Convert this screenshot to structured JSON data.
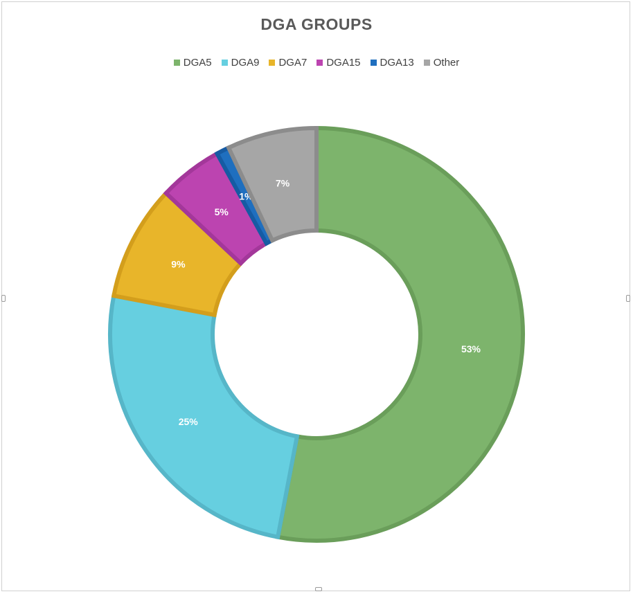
{
  "chart_data": {
    "type": "pie",
    "variant": "donut",
    "title": "DGA GROUPS",
    "legend_position": "top",
    "categories": [
      "DGA5",
      "DGA9",
      "DGA7",
      "DGA15",
      "DGA13",
      "Other"
    ],
    "values": [
      53,
      25,
      9,
      5,
      1,
      7
    ],
    "labels": [
      "53%",
      "25%",
      "9%",
      "5%",
      "1%",
      "7%"
    ],
    "colors": [
      "#7DB46C",
      "#66CFE0",
      "#E8B52A",
      "#BC44B0",
      "#1F6FBF",
      "#A6A6A6"
    ],
    "border_colors": [
      "#6A9E5A",
      "#56B6C8",
      "#D39E1C",
      "#A3379A",
      "#165BA3",
      "#8C8C8C"
    ]
  }
}
